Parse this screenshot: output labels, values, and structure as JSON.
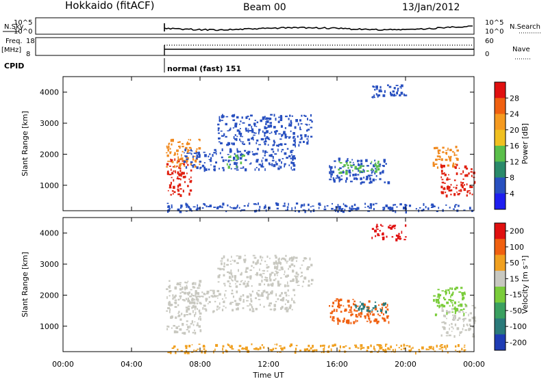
{
  "header": {
    "station": "Hokkaido (fitACF)",
    "beam": "Beam 00",
    "date": "13/Jan/2012"
  },
  "top_panels": {
    "nsky_label": "N.Sky",
    "nsky_ticks": [
      "10^5",
      "10^0"
    ],
    "nsearch_label": "N.Search",
    "nsearch_ticks": [
      "10^5",
      "10^0"
    ],
    "freq_label": "Freq.",
    "freq_unit": "[MHz]",
    "freq_ticks": [
      "18",
      "8"
    ],
    "nave_label": "Nave",
    "nave_ticks": [
      "60",
      "0"
    ],
    "cpid_label": "CPID",
    "cpid_text": "normal (fast) 151"
  },
  "chart_data": [
    {
      "type": "heatmap",
      "name": "power",
      "ylabel": "Slant Range [km]",
      "yticks": [
        1000,
        2000,
        3000,
        4000
      ],
      "ylim": [
        180,
        4500
      ],
      "xlim": [
        0,
        24
      ],
      "xticks": [
        "00:00",
        "04:00",
        "08:00",
        "12:00",
        "16:00",
        "20:00",
        "00:00"
      ],
      "colorbar": {
        "label": "Power [dB]",
        "ticks": [
          "4",
          "8",
          "12",
          "16",
          "20",
          "24",
          "28"
        ],
        "colors": [
          "#1e1ef0",
          "#2850c0",
          "#2a8a6a",
          "#5abf4a",
          "#f0c020",
          "#f59a20",
          "#f06010",
          "#e01010"
        ]
      },
      "data_start_ut": 6.0,
      "regions": [
        {
          "t0": 6.0,
          "t1": 7.5,
          "r0": 700,
          "r1": 1900,
          "color": "#e02010"
        },
        {
          "t0": 6.0,
          "t1": 8.0,
          "r0": 1600,
          "r1": 2500,
          "color": "#f08a20"
        },
        {
          "t0": 7.0,
          "t1": 13.5,
          "r0": 1500,
          "r1": 2200,
          "color": "#2850c0"
        },
        {
          "t0": 9.5,
          "t1": 10.5,
          "r0": 1600,
          "r1": 2000,
          "color": "#5abf4a"
        },
        {
          "t0": 9.0,
          "t1": 14.5,
          "r0": 2300,
          "r1": 3300,
          "color": "#2850c0"
        },
        {
          "t0": 15.5,
          "t1": 19.0,
          "r0": 1100,
          "r1": 1900,
          "color": "#2850c0"
        },
        {
          "t0": 16.0,
          "t1": 18.5,
          "r0": 1400,
          "r1": 1800,
          "color": "#5abf4a"
        },
        {
          "t0": 18.0,
          "t1": 20.0,
          "r0": 3800,
          "r1": 4300,
          "color": "#2850c0"
        },
        {
          "t0": 22.0,
          "t1": 24.0,
          "r0": 700,
          "r1": 1700,
          "color": "#e02010"
        },
        {
          "t0": 21.5,
          "t1": 23.0,
          "r0": 1600,
          "r1": 2300,
          "color": "#f08a20"
        },
        {
          "t0": 6.0,
          "t1": 24.0,
          "r0": 180,
          "r1": 450,
          "color": "#2850c0"
        }
      ]
    },
    {
      "type": "heatmap",
      "name": "velocity",
      "ylabel": "Slant Range [km]",
      "yticks": [
        1000,
        2000,
        3000,
        4000
      ],
      "ylim": [
        180,
        4500
      ],
      "xlim": [
        0,
        24
      ],
      "xlabel": "Time UT",
      "xticks": [
        "00:00",
        "04:00",
        "08:00",
        "12:00",
        "16:00",
        "20:00",
        "00:00"
      ],
      "colorbar": {
        "label": "Velocity [m s⁻¹]",
        "ticks": [
          "200",
          "100",
          "50",
          "15",
          "-15",
          "-50",
          "-100",
          "-200"
        ],
        "colors": [
          "#1e3cb4",
          "#2a7a7a",
          "#3aa060",
          "#7acc3a",
          "#c8c8c0",
          "#f0a020",
          "#f06010",
          "#e01010"
        ]
      },
      "data_start_ut": 6.0,
      "regions": [
        {
          "t0": 6.0,
          "t1": 8.0,
          "r0": 800,
          "r1": 2500,
          "color": "#c8c8c0"
        },
        {
          "t0": 7.0,
          "t1": 13.5,
          "r0": 1500,
          "r1": 2200,
          "color": "#c8c8c0"
        },
        {
          "t0": 9.0,
          "t1": 14.5,
          "r0": 2300,
          "r1": 3300,
          "color": "#c8c8c0"
        },
        {
          "t0": 15.5,
          "t1": 19.0,
          "r0": 1100,
          "r1": 1900,
          "color": "#f06010"
        },
        {
          "t0": 17.0,
          "t1": 19.0,
          "r0": 1500,
          "r1": 1800,
          "color": "#2a7a7a"
        },
        {
          "t0": 18.0,
          "t1": 20.0,
          "r0": 3800,
          "r1": 4300,
          "color": "#e01010"
        },
        {
          "t0": 22.0,
          "t1": 24.0,
          "r0": 700,
          "r1": 1700,
          "color": "#c8c8c0"
        },
        {
          "t0": 21.5,
          "t1": 23.5,
          "r0": 1400,
          "r1": 2300,
          "color": "#7acc3a"
        },
        {
          "t0": 6.0,
          "t1": 24.0,
          "r0": 180,
          "r1": 450,
          "color": "#f0a020"
        }
      ]
    }
  ]
}
